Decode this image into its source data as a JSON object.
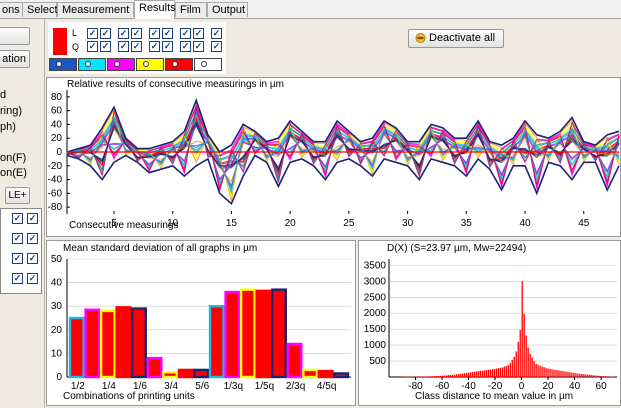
{
  "tabs": [
    {
      "label": "ons",
      "active": false
    },
    {
      "label": "Select",
      "active": false
    },
    {
      "label": "Measurement",
      "active": false
    },
    {
      "label": "Results",
      "active": true
    },
    {
      "label": "Film",
      "active": false
    },
    {
      "label": "Output",
      "active": false
    }
  ],
  "sidebar": {
    "btn1": "",
    "btn2": "ation",
    "texts": [
      "d",
      "ring)",
      "ph)",
      "on(F)",
      "on(E)"
    ],
    "le_button": "LE+"
  },
  "controls": {
    "row_labels": [
      "L",
      "Q"
    ],
    "swatch_colors": [
      "#1a57c5",
      "#00e5ff",
      "#ff00ff",
      "#ffff00",
      "#ff0000",
      "#ffffff"
    ],
    "deactivate_label": "Deactivate all"
  },
  "top_chart": {
    "title": "Relative results of consecutive measurings in µm",
    "xlabel": "Consecutive measurings",
    "yticks": [
      "80",
      "60",
      "40",
      "20",
      "0",
      "-20",
      "-40",
      "-60",
      "-80"
    ],
    "xticks": [
      "5",
      "10",
      "15",
      "20",
      "25",
      "30",
      "35",
      "40",
      "45"
    ]
  },
  "bottom_left": {
    "title": "Mean standard deviation of all graphs in µm",
    "xlabel": "Combinations of printing units",
    "yticks": [
      "50",
      "40",
      "30",
      "20",
      "10",
      "0"
    ],
    "xticks": [
      "1/2",
      "1/4",
      "1/6",
      "3/4",
      "5/6",
      "1/3q",
      "1/5q",
      "2/3q",
      "4/5q"
    ]
  },
  "bottom_right": {
    "title": "D(X) (S=23.97 µm, Mw=22494)",
    "xlabel": "Class distance to mean value in µm",
    "yticks": [
      "3500",
      "3000",
      "2500",
      "2000",
      "1500",
      "1000",
      "500"
    ],
    "xticks": [
      "-80",
      "-60",
      "-40",
      "-20",
      "0",
      "20",
      "40",
      "60"
    ]
  },
  "chart_data": [
    {
      "type": "line",
      "title": "Relative results of consecutive measurings in µm",
      "xlabel": "Consecutive measurings",
      "ylabel": "",
      "xlim": [
        1,
        48
      ],
      "ylim": [
        -90,
        90
      ],
      "x": [
        1,
        2,
        3,
        4,
        5,
        6,
        7,
        8,
        9,
        10,
        11,
        12,
        13,
        14,
        15,
        16,
        17,
        18,
        19,
        20,
        21,
        22,
        23,
        24,
        25,
        26,
        27,
        28,
        29,
        30,
        31,
        32,
        33,
        34,
        35,
        36,
        37,
        38,
        39,
        40,
        41,
        42,
        43,
        44,
        45,
        46,
        47,
        48
      ],
      "envelope_max": [
        0,
        5,
        10,
        35,
        65,
        20,
        5,
        5,
        10,
        15,
        30,
        75,
        25,
        0,
        10,
        40,
        30,
        15,
        20,
        45,
        30,
        15,
        15,
        45,
        30,
        15,
        20,
        45,
        35,
        15,
        15,
        40,
        35,
        20,
        20,
        45,
        15,
        10,
        20,
        45,
        25,
        20,
        30,
        50,
        15,
        10,
        25,
        30
      ],
      "envelope_min": [
        -5,
        -10,
        -20,
        -40,
        -15,
        -5,
        -15,
        -30,
        -25,
        -20,
        -35,
        -20,
        -10,
        -60,
        -75,
        -35,
        -5,
        -15,
        -50,
        -15,
        -10,
        -20,
        -40,
        -15,
        -10,
        -20,
        -35,
        -10,
        -15,
        -20,
        -40,
        -10,
        -15,
        -20,
        -35,
        -10,
        -25,
        -55,
        -20,
        -20,
        -60,
        -15,
        -20,
        -40,
        -15,
        -15,
        -55,
        -20
      ]
    },
    {
      "type": "bar",
      "title": "Mean standard deviation of all graphs in µm",
      "xlabel": "Combinations of printing units",
      "ylim": [
        0,
        50
      ],
      "categories": [
        "1/2",
        "",
        "1/4",
        "",
        "1/6",
        "",
        "3/4",
        "",
        "5/6",
        "",
        "1/3q",
        "",
        "1/5q",
        "",
        "2/3q",
        "",
        "4/5q",
        ""
      ],
      "values": [
        25,
        28.5,
        28,
        29.5,
        29,
        8,
        2,
        3,
        3,
        30,
        36,
        37,
        36.5,
        37,
        14,
        3,
        2.5,
        1.5
      ],
      "colors": [
        [
          "#ff0000",
          "#29b3e3"
        ],
        [
          "#ff0000",
          "#ff00ff"
        ],
        [
          "#ff0000",
          "#ffff00"
        ],
        [
          "#ff0000",
          "#ff0000"
        ],
        [
          "#ff0000",
          "#1a2470"
        ],
        [
          "#ff0000",
          "#ff00ff"
        ],
        [
          "#ff0000",
          "#ffff00"
        ],
        [
          "#ff0000",
          "#ff0000"
        ],
        [
          "#ff0000",
          "#1a2470"
        ],
        [
          "#ff0000",
          "#29b3e3"
        ],
        [
          "#ff0000",
          "#ff00ff"
        ],
        [
          "#ff0000",
          "#ffff00"
        ],
        [
          "#ff0000",
          "#ff0000"
        ],
        [
          "#ff0000",
          "#1a2470"
        ],
        [
          "#ff0000",
          "#ff00ff"
        ],
        [
          "#ff0000",
          "#ffff00"
        ],
        [
          "#ff0000",
          "#ff0000"
        ],
        [
          "#ff0000",
          "#1a2470"
        ]
      ]
    },
    {
      "type": "bar",
      "title": "D(X) (S=23.97 µm, Mw=22494)",
      "xlabel": "Class distance to mean value in µm",
      "xlim": [
        -100,
        72
      ],
      "ylim": [
        0,
        3700
      ],
      "x": [
        -80,
        -70,
        -60,
        -50,
        -40,
        -30,
        -20,
        -15,
        -10,
        -5,
        -3,
        -1,
        0,
        1,
        3,
        5,
        10,
        15,
        20,
        30,
        40,
        50,
        60,
        70
      ],
      "values": [
        10,
        20,
        40,
        80,
        140,
        200,
        260,
        300,
        380,
        700,
        1100,
        1600,
        3000,
        2200,
        1300,
        800,
        420,
        330,
        260,
        190,
        120,
        70,
        30,
        10
      ]
    }
  ]
}
